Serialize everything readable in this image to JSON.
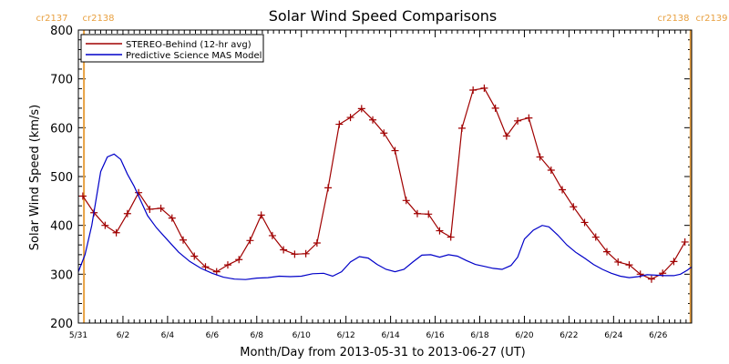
{
  "chart_data": {
    "type": "line",
    "title": "Solar Wind Speed Comparisons",
    "xlabel": "Month/Day from 2013-05-31 to 2013-06-27 (UT)",
    "ylabel": "Solar Wind Speed (km/s)",
    "ylim": [
      200,
      800
    ],
    "xlim": [
      0,
      27.5
    ],
    "y_ticks": [
      200,
      300,
      400,
      500,
      600,
      700,
      800
    ],
    "x_ticks": [
      {
        "x": 0,
        "label": "5/31"
      },
      {
        "x": 2,
        "label": "6/2"
      },
      {
        "x": 4,
        "label": "6/4"
      },
      {
        "x": 6,
        "label": "6/6"
      },
      {
        "x": 8,
        "label": "6/8"
      },
      {
        "x": 10,
        "label": "6/10"
      },
      {
        "x": 12,
        "label": "6/12"
      },
      {
        "x": 14,
        "label": "6/14"
      },
      {
        "x": 16,
        "label": "6/16"
      },
      {
        "x": 18,
        "label": "6/18"
      },
      {
        "x": 20,
        "label": "6/20"
      },
      {
        "x": 22,
        "label": "6/22"
      },
      {
        "x": 24,
        "label": "6/24"
      },
      {
        "x": 26,
        "label": "6/26"
      }
    ],
    "carrington_markers": [
      {
        "x": 0.25,
        "label_left": "cr2137",
        "label_right": "cr2138",
        "side": "left"
      },
      {
        "x": 27.45,
        "label_left": "cr2138",
        "label_right": "cr2139",
        "side": "right"
      }
    ],
    "marker_color": "#e8a040",
    "legend_position": "top-left",
    "series": [
      {
        "name": "STEREO-Behind (12-hr avg)",
        "color": "#a00000",
        "marker": "plus",
        "points": [
          [
            0.2,
            460
          ],
          [
            0.7,
            426
          ],
          [
            1.2,
            400
          ],
          [
            1.7,
            385
          ],
          [
            2.2,
            424
          ],
          [
            2.7,
            467
          ],
          [
            3.2,
            433
          ],
          [
            3.7,
            435
          ],
          [
            4.2,
            415
          ],
          [
            4.7,
            370
          ],
          [
            5.2,
            337
          ],
          [
            5.7,
            315
          ],
          [
            6.2,
            305
          ],
          [
            6.7,
            319
          ],
          [
            7.2,
            330
          ],
          [
            7.7,
            369
          ],
          [
            8.2,
            421
          ],
          [
            8.7,
            379
          ],
          [
            9.2,
            350
          ],
          [
            9.7,
            341
          ],
          [
            10.2,
            342
          ],
          [
            10.7,
            364
          ],
          [
            11.2,
            477
          ],
          [
            11.7,
            607
          ],
          [
            12.2,
            621
          ],
          [
            12.7,
            639
          ],
          [
            13.2,
            616
          ],
          [
            13.7,
            589
          ],
          [
            14.2,
            553
          ],
          [
            14.7,
            451
          ],
          [
            15.2,
            424
          ],
          [
            15.7,
            423
          ],
          [
            16.2,
            389
          ],
          [
            16.7,
            376
          ],
          [
            17.2,
            599
          ],
          [
            17.7,
            677
          ],
          [
            18.2,
            681
          ],
          [
            18.7,
            640
          ],
          [
            19.2,
            583
          ],
          [
            19.7,
            614
          ],
          [
            20.2,
            620
          ],
          [
            20.7,
            540
          ],
          [
            21.2,
            513
          ],
          [
            21.7,
            473
          ],
          [
            22.2,
            438
          ],
          [
            22.7,
            406
          ],
          [
            23.2,
            376
          ],
          [
            23.7,
            346
          ],
          [
            24.2,
            325
          ],
          [
            24.7,
            319
          ],
          [
            25.2,
            300
          ],
          [
            25.7,
            290
          ],
          [
            26.2,
            302
          ],
          [
            26.7,
            326
          ],
          [
            27.2,
            366
          ]
        ]
      },
      {
        "name": "Predictive Science MAS Model",
        "color": "#0000c8",
        "marker": "none",
        "points": [
          [
            0,
            305
          ],
          [
            0.3,
            340
          ],
          [
            0.6,
            400
          ],
          [
            1.0,
            510
          ],
          [
            1.3,
            540
          ],
          [
            1.6,
            546
          ],
          [
            1.9,
            535
          ],
          [
            2.2,
            505
          ],
          [
            2.5,
            480
          ],
          [
            2.8,
            450
          ],
          [
            3.1,
            420
          ],
          [
            3.5,
            395
          ],
          [
            4.0,
            370
          ],
          [
            4.5,
            345
          ],
          [
            5.0,
            326
          ],
          [
            5.5,
            312
          ],
          [
            6.0,
            302
          ],
          [
            6.5,
            294
          ],
          [
            7.0,
            290
          ],
          [
            7.5,
            289
          ],
          [
            8.0,
            292
          ],
          [
            8.5,
            293
          ],
          [
            9.0,
            296
          ],
          [
            9.5,
            295
          ],
          [
            10.0,
            296
          ],
          [
            10.5,
            301
          ],
          [
            11.0,
            302
          ],
          [
            11.4,
            296
          ],
          [
            11.8,
            305
          ],
          [
            12.2,
            325
          ],
          [
            12.6,
            336
          ],
          [
            13.0,
            333
          ],
          [
            13.4,
            320
          ],
          [
            13.8,
            310
          ],
          [
            14.2,
            305
          ],
          [
            14.6,
            310
          ],
          [
            15.0,
            325
          ],
          [
            15.4,
            339
          ],
          [
            15.8,
            340
          ],
          [
            16.2,
            335
          ],
          [
            16.6,
            340
          ],
          [
            17.0,
            337
          ],
          [
            17.4,
            328
          ],
          [
            17.8,
            320
          ],
          [
            18.2,
            316
          ],
          [
            18.6,
            312
          ],
          [
            19.0,
            310
          ],
          [
            19.4,
            318
          ],
          [
            19.7,
            335
          ],
          [
            20.0,
            372
          ],
          [
            20.4,
            390
          ],
          [
            20.8,
            400
          ],
          [
            21.1,
            397
          ],
          [
            21.5,
            380
          ],
          [
            21.9,
            360
          ],
          [
            22.3,
            345
          ],
          [
            22.7,
            333
          ],
          [
            23.1,
            320
          ],
          [
            23.5,
            310
          ],
          [
            23.9,
            302
          ],
          [
            24.3,
            296
          ],
          [
            24.7,
            293
          ],
          [
            25.1,
            295
          ],
          [
            25.5,
            299
          ],
          [
            25.9,
            298
          ],
          [
            26.3,
            297
          ],
          [
            26.7,
            297
          ],
          [
            27.0,
            300
          ],
          [
            27.3,
            308
          ],
          [
            27.5,
            315
          ]
        ]
      }
    ]
  }
}
